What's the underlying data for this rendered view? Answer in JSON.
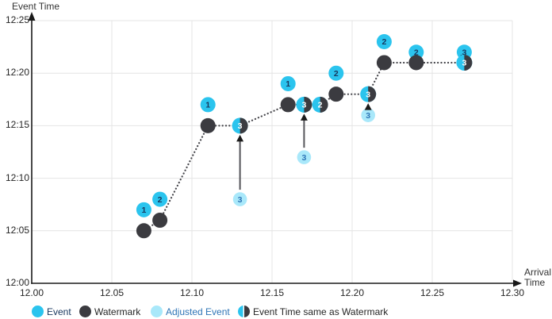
{
  "colors": {
    "event": "#2BC4EE",
    "event_number": "#17375E",
    "watermark": "#3B3B40",
    "adjusted": "#A9E8FA",
    "adjusted_number": "#2E75B6",
    "half_number": "#FFFFFF",
    "grid": "#E4E4E4",
    "axis": "#1A1A1A",
    "dotted_line": "#45454A",
    "arrow": "#55555A",
    "arrow_head": "#1A1A1A"
  },
  "chart_data": {
    "type": "scatter",
    "x_axis": {
      "title_line1": "Arrival",
      "title_line2": "Time",
      "tick_labels": [
        "12.00",
        "12.05",
        "12.10",
        "12.15",
        "12.20",
        "12.25",
        "12.30"
      ],
      "range": [
        12.0,
        12.3
      ]
    },
    "y_axis": {
      "title": "Event Time",
      "tick_labels": [
        "12:00",
        "12:05",
        "12:10",
        "12:15",
        "12:20",
        "12:25"
      ],
      "range": [
        "12:00",
        "12:25"
      ]
    },
    "grid": "on",
    "legend_position": "bottom",
    "events": [
      {
        "label": "1",
        "arrival": 12.07,
        "event_time": "12:07"
      },
      {
        "label": "2",
        "arrival": 12.08,
        "event_time": "12:08"
      },
      {
        "label": "1",
        "arrival": 12.11,
        "event_time": "12:17"
      },
      {
        "label": "1",
        "arrival": 12.16,
        "event_time": "12:19"
      },
      {
        "label": "2",
        "arrival": 12.19,
        "event_time": "12:20"
      },
      {
        "label": "2",
        "arrival": 12.22,
        "event_time": "12:23"
      },
      {
        "label": "2",
        "arrival": 12.24,
        "event_time": "12:22"
      },
      {
        "label": "3",
        "arrival": 12.27,
        "event_time": "12:22"
      }
    ],
    "watermarks": [
      {
        "arrival": 12.07,
        "watermark": "12:05"
      },
      {
        "arrival": 12.08,
        "watermark": "12:06"
      },
      {
        "arrival": 12.11,
        "watermark": "12:15"
      },
      {
        "arrival": 12.16,
        "watermark": "12:17"
      },
      {
        "arrival": 12.19,
        "watermark": "12:18"
      },
      {
        "arrival": 12.22,
        "watermark": "12:21"
      },
      {
        "arrival": 12.24,
        "watermark": "12:21"
      }
    ],
    "events_same_as_watermark": [
      {
        "label": "3",
        "arrival": 12.13,
        "event_time": "12:15"
      },
      {
        "label": "3",
        "arrival": 12.17,
        "event_time": "12:17"
      },
      {
        "label": "2",
        "arrival": 12.18,
        "event_time": "12:17"
      },
      {
        "label": "3",
        "arrival": 12.21,
        "event_time": "12:18"
      },
      {
        "label": "3",
        "arrival": 12.27,
        "event_time": "12:21"
      }
    ],
    "adjusted_events": [
      {
        "label": "3",
        "arrival": 12.13,
        "original_event_time": "12:08",
        "adjusted_to": "12:15"
      },
      {
        "label": "3",
        "arrival": 12.17,
        "original_event_time": "12:12",
        "adjusted_to": "12:17"
      },
      {
        "label": "3",
        "arrival": 12.21,
        "original_event_time": "12:16",
        "adjusted_to": "12:18"
      }
    ],
    "extra_arrows": [
      {
        "arrival": 12.268,
        "from_time": "12:21",
        "to_time": "12:22"
      }
    ],
    "watermark_line": [
      [
        12.07,
        "12:05"
      ],
      [
        12.08,
        "12:06"
      ],
      [
        12.11,
        "12:15"
      ],
      [
        12.13,
        "12:15"
      ],
      [
        12.16,
        "12:17"
      ],
      [
        12.18,
        "12:17"
      ],
      [
        12.19,
        "12:18"
      ],
      [
        12.21,
        "12:18"
      ],
      [
        12.22,
        "12:21"
      ],
      [
        12.24,
        "12:21"
      ],
      [
        12.27,
        "12:21"
      ]
    ],
    "legend": [
      {
        "label": "Event",
        "marker": "event",
        "text_color": "#17375E"
      },
      {
        "label": "Watermark",
        "marker": "watermark",
        "text_color": "#262626"
      },
      {
        "label": "Adjusted Event",
        "marker": "adjusted",
        "text_color": "#2E75B6"
      },
      {
        "label": "Event Time same as Watermark",
        "marker": "half",
        "text_color": "#262626"
      }
    ]
  }
}
